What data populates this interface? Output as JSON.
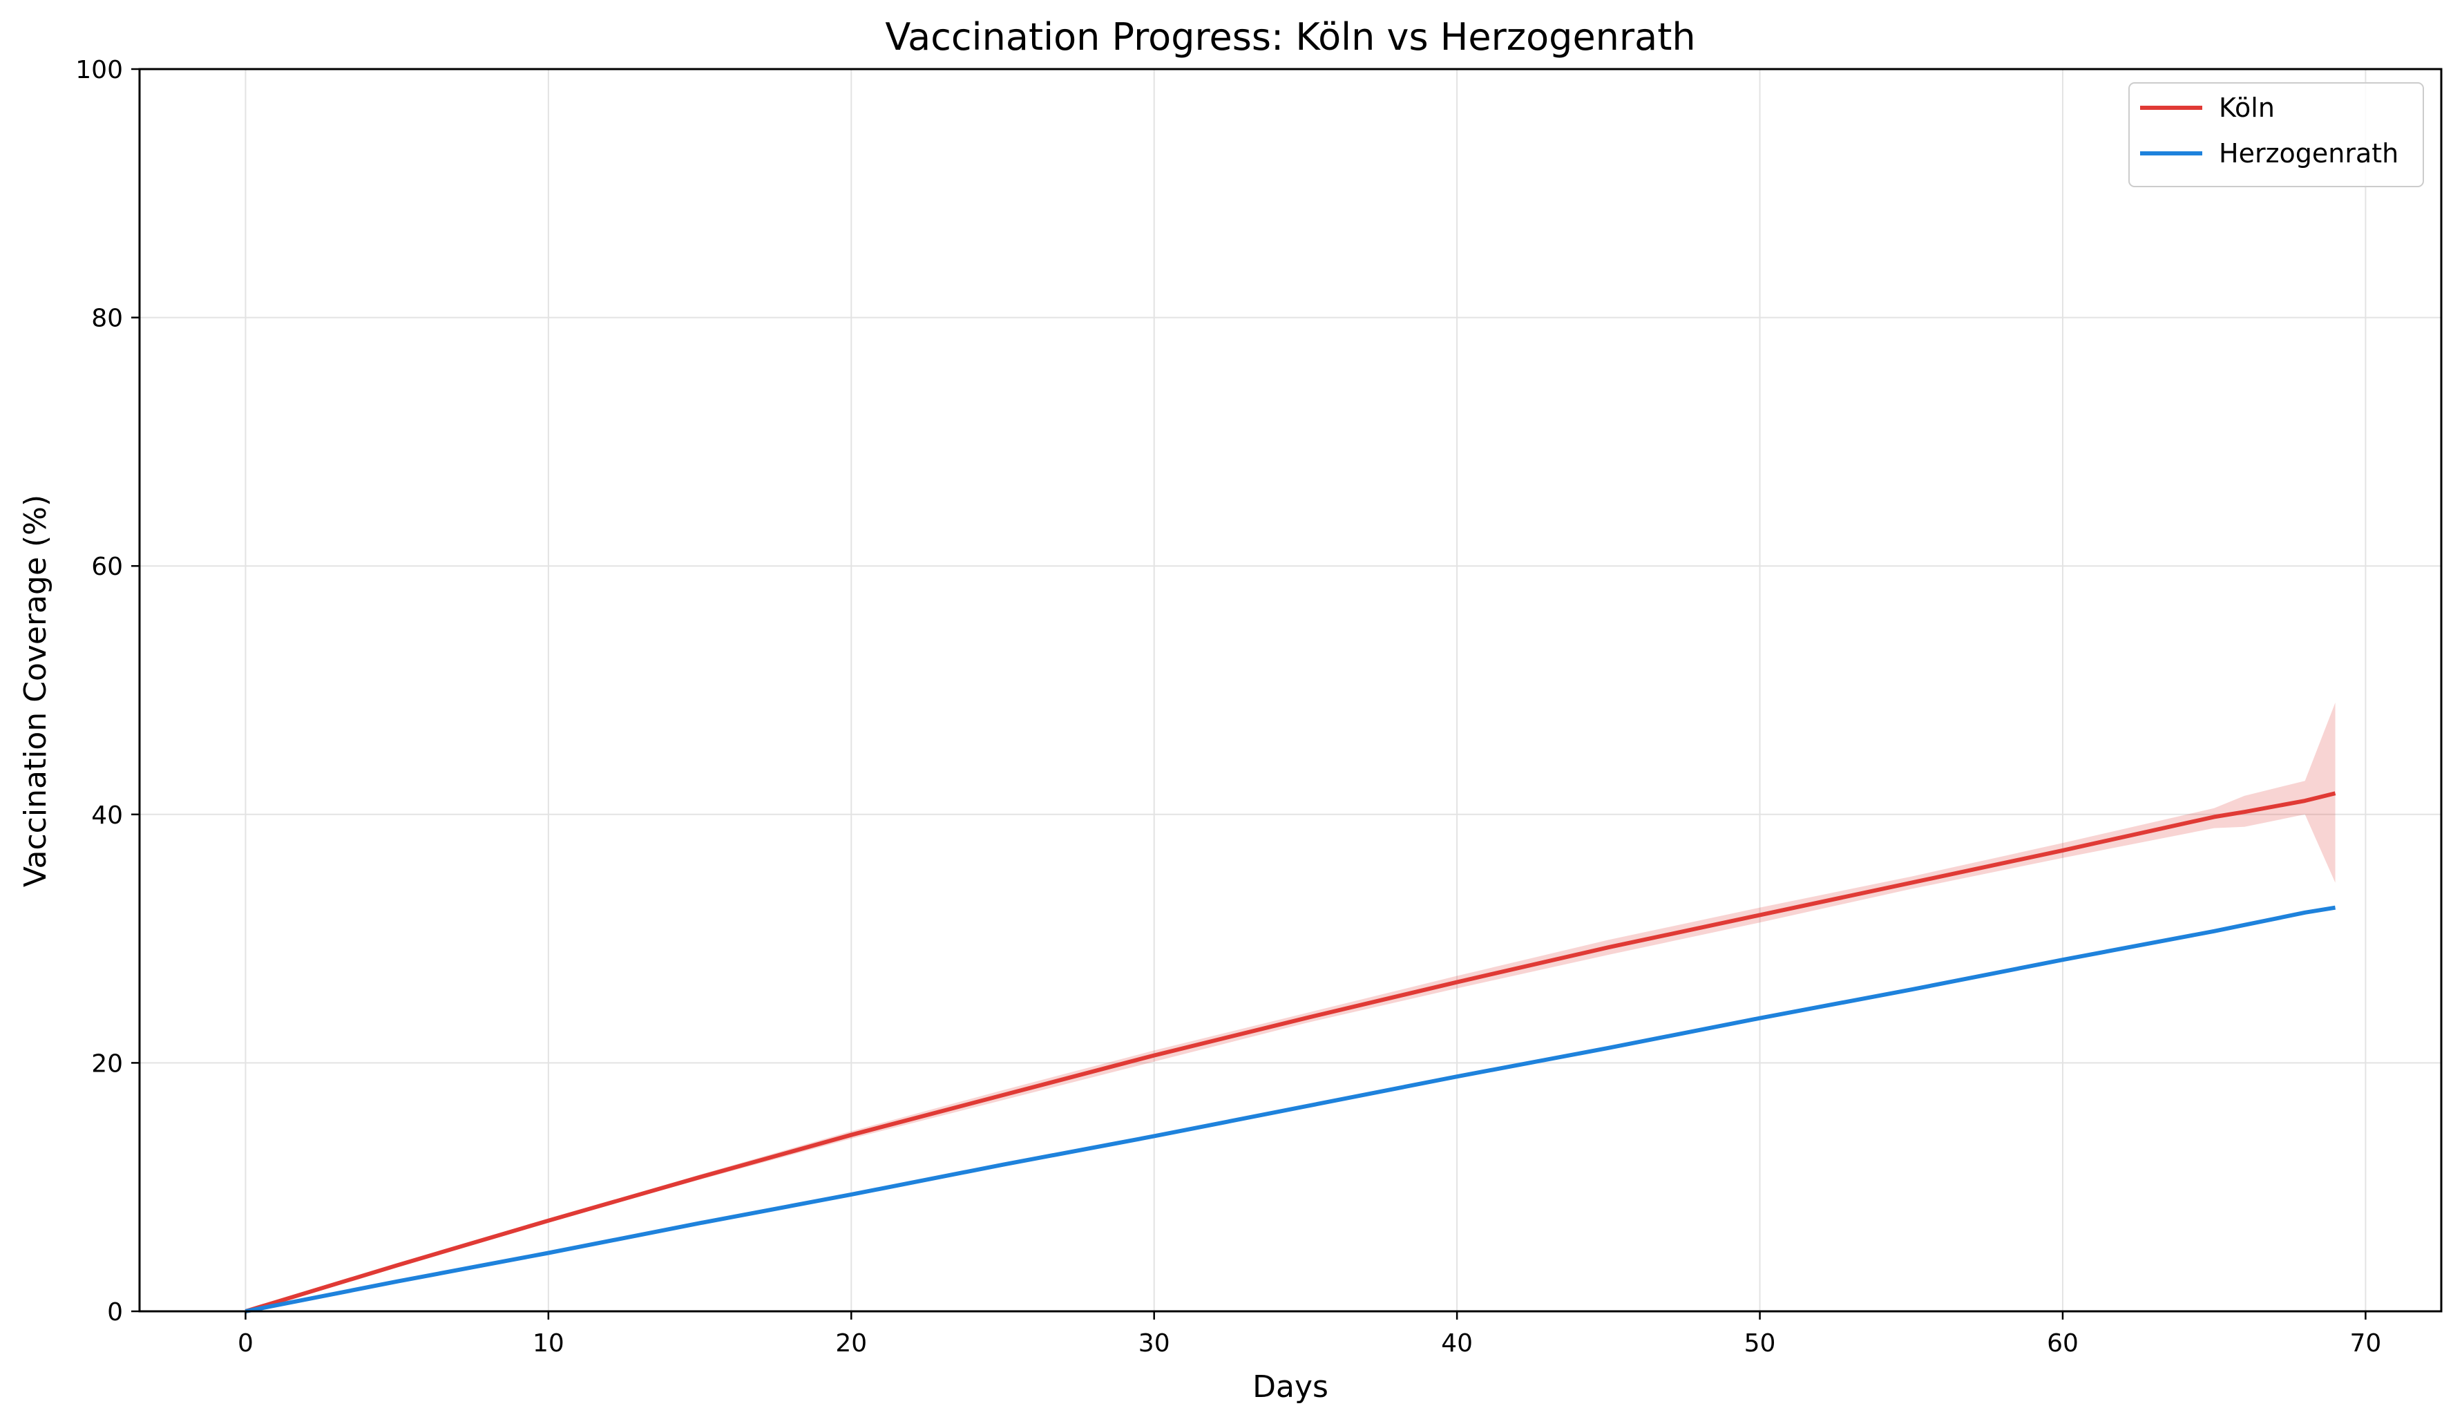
{
  "chart_data": {
    "type": "line",
    "title": "Vaccination Progress: Köln vs Herzogenrath",
    "xlabel": "Days",
    "ylabel": "Vaccination Coverage (%)",
    "xlim": [
      -3.5,
      72.5
    ],
    "ylim": [
      0,
      100
    ],
    "xticks": [
      0,
      10,
      20,
      30,
      40,
      50,
      60,
      70
    ],
    "yticks": [
      0,
      20,
      40,
      60,
      80,
      100
    ],
    "grid": true,
    "legend_position": "top-right",
    "x": [
      0,
      5,
      10,
      15,
      20,
      25,
      30,
      35,
      40,
      45,
      50,
      55,
      60,
      65,
      66,
      68,
      69
    ],
    "series": [
      {
        "name": "Köln",
        "color": "#e03a35",
        "values": [
          0,
          3.7,
          7.3,
          10.8,
          14.2,
          17.4,
          20.6,
          23.6,
          26.5,
          29.3,
          31.9,
          34.5,
          37.1,
          39.8,
          40.2,
          41.1,
          41.7
        ],
        "band_lower": [
          0,
          3.6,
          7.2,
          10.6,
          13.9,
          17.0,
          20.1,
          23.2,
          26.0,
          28.7,
          31.3,
          34.0,
          36.5,
          38.9,
          39.0,
          40.0,
          34.5
        ],
        "band_upper": [
          0,
          3.8,
          7.4,
          11.0,
          14.5,
          17.8,
          21.0,
          24.0,
          27.0,
          29.9,
          32.5,
          35.0,
          37.7,
          40.5,
          41.5,
          42.7,
          49.0
        ]
      },
      {
        "name": "Herzogenrath",
        "color": "#1e82dc",
        "values": [
          0,
          2.4,
          4.7,
          7.1,
          9.4,
          11.8,
          14.1,
          16.5,
          18.9,
          21.2,
          23.6,
          25.9,
          28.3,
          30.6,
          31.1,
          32.1,
          32.5
        ]
      }
    ]
  }
}
